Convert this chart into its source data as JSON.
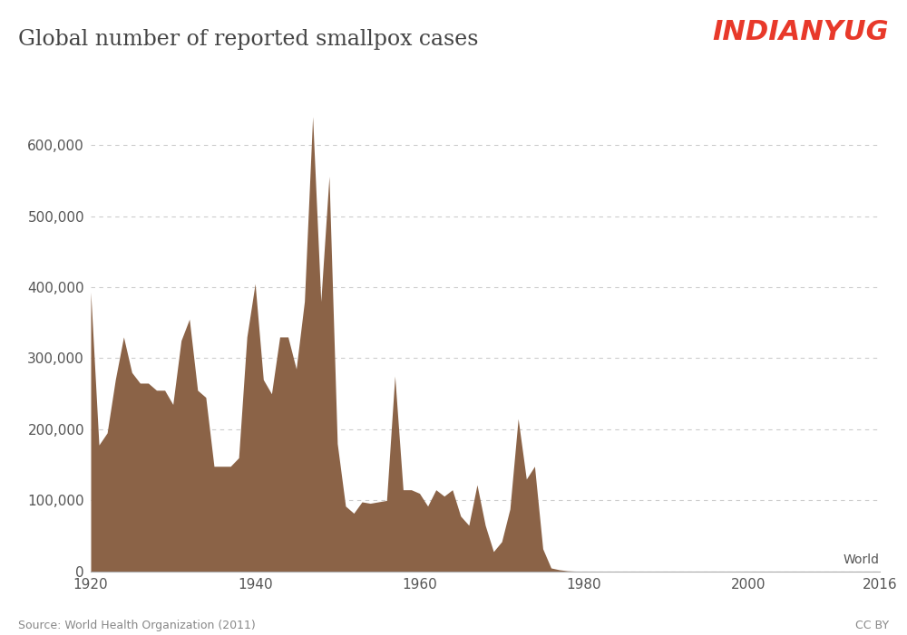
{
  "title": "Global number of reported smallpox cases",
  "watermark": "INDIANYUG",
  "watermark_color": "#e8392a",
  "source_text": "Source: World Health Organization (2011)",
  "cc_text": "CC BY",
  "area_color": "#8B6347",
  "background_color": "#ffffff",
  "line_label": "World",
  "ylabel_ticks": [
    0,
    100000,
    200000,
    300000,
    400000,
    500000,
    600000
  ],
  "ytick_labels": [
    "0",
    "100,000",
    "200,000",
    "300,000",
    "400,000",
    "500,000",
    "600,000"
  ],
  "xtick_values": [
    1920,
    1940,
    1960,
    1980,
    2000,
    2016
  ],
  "xtick_labels": [
    "1920",
    "1940",
    "1960",
    "1980",
    "2000",
    "2016"
  ],
  "xlim": [
    1920,
    2016
  ],
  "ylim": [
    0,
    670000
  ],
  "years": [
    1920,
    1921,
    1922,
    1923,
    1924,
    1925,
    1926,
    1927,
    1928,
    1929,
    1930,
    1931,
    1932,
    1933,
    1934,
    1935,
    1936,
    1937,
    1938,
    1939,
    1940,
    1941,
    1942,
    1943,
    1944,
    1945,
    1946,
    1947,
    1948,
    1949,
    1950,
    1951,
    1952,
    1953,
    1954,
    1955,
    1956,
    1957,
    1958,
    1959,
    1960,
    1961,
    1962,
    1963,
    1964,
    1965,
    1966,
    1967,
    1968,
    1969,
    1970,
    1971,
    1972,
    1973,
    1974,
    1975,
    1976,
    1977,
    1978,
    1979,
    1980,
    1985,
    1990,
    1995,
    2000,
    2005,
    2010,
    2016
  ],
  "cases": [
    393000,
    178000,
    195000,
    270000,
    330000,
    280000,
    265000,
    265000,
    255000,
    255000,
    235000,
    325000,
    355000,
    255000,
    245000,
    148000,
    148000,
    148000,
    160000,
    330000,
    405000,
    270000,
    250000,
    330000,
    330000,
    285000,
    380000,
    640000,
    380000,
    556000,
    180000,
    92000,
    82000,
    98000,
    96000,
    98000,
    100000,
    275000,
    115000,
    115000,
    110000,
    92000,
    115000,
    106000,
    115000,
    78000,
    65000,
    122000,
    65000,
    28000,
    42000,
    88000,
    215000,
    130000,
    148000,
    32000,
    5000,
    2500,
    1000,
    500,
    0,
    0,
    0,
    0,
    0,
    0,
    0,
    0
  ]
}
